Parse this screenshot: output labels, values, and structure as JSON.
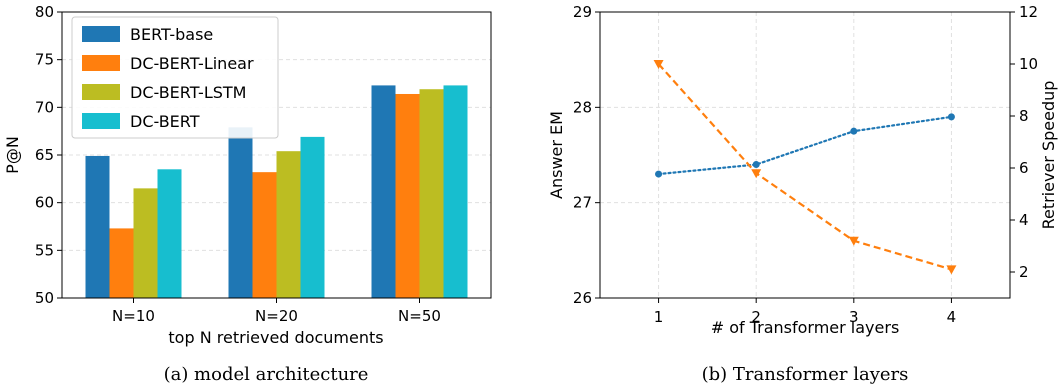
{
  "chart_data": [
    {
      "type": "bar",
      "caption": "(a) model architecture",
      "xlabel": "top N retrieved documents",
      "ylabel": "P@N",
      "ylim": [
        50,
        80
      ],
      "yticks": [
        50,
        55,
        60,
        65,
        70,
        75,
        80
      ],
      "categories": [
        "N=10",
        "N=20",
        "N=50"
      ],
      "grid": true,
      "legend_position": "top-left",
      "series": [
        {
          "name": "BERT-base",
          "color": "#1f77b4",
          "values": [
            64.9,
            67.9,
            72.3
          ]
        },
        {
          "name": "DC-BERT-Linear",
          "color": "#ff7f0e",
          "values": [
            57.3,
            63.2,
            71.4
          ]
        },
        {
          "name": "DC-BERT-LSTM",
          "color": "#bcbd22",
          "values": [
            61.5,
            65.4,
            71.9
          ]
        },
        {
          "name": "DC-BERT",
          "color": "#17becf",
          "values": [
            63.5,
            66.9,
            72.3
          ]
        }
      ]
    },
    {
      "type": "line",
      "caption": "(b) Transformer layers",
      "xlabel": "# of Transformer layers",
      "x": [
        1,
        2,
        3,
        4
      ],
      "xticks": [
        "1",
        "2",
        "3",
        "4"
      ],
      "xlim": [
        0.4,
        4.6
      ],
      "grid": true,
      "left_axis": {
        "label": "Answer EM",
        "color": "#1f77b4",
        "ylim": [
          26,
          29
        ],
        "yticks": [
          "26",
          "27",
          "28",
          "29"
        ],
        "values": [
          27.3,
          27.4,
          27.75,
          27.9
        ]
      },
      "right_axis": {
        "label": "Retriever Speedup",
        "color": "#ff7f0e",
        "ylim": [
          1,
          12
        ],
        "yticks": [
          "2",
          "4",
          "6",
          "8",
          "10",
          "12"
        ],
        "values": [
          10.0,
          5.8,
          3.2,
          2.1
        ]
      }
    }
  ]
}
